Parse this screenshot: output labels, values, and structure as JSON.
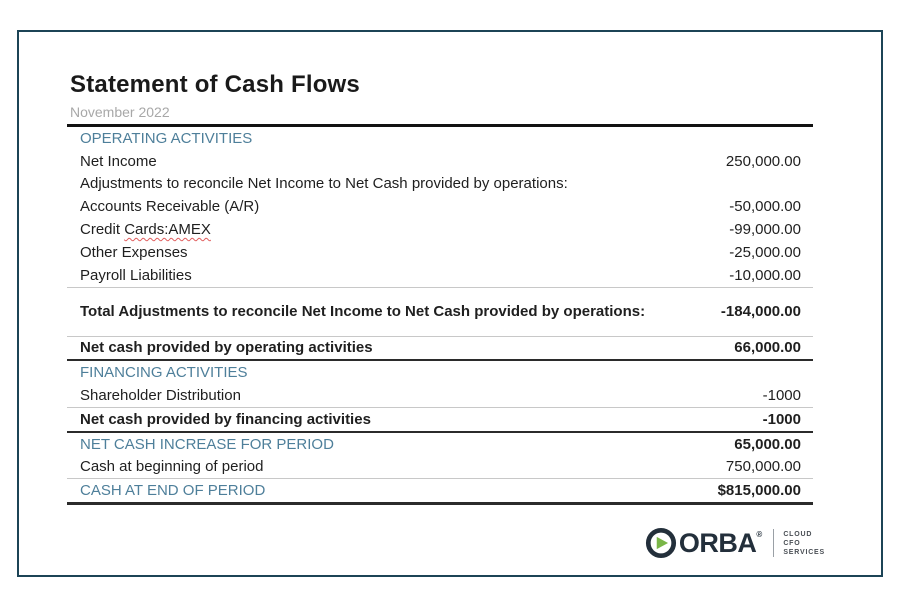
{
  "header": {
    "title": "Statement of Cash Flows",
    "subtitle": "November 2022"
  },
  "colors": {
    "frame_border": "#1c4456",
    "section_heading": "#4e7f9a",
    "body_text": "#1f1f1f",
    "subtitle_gray": "#a8a8a8",
    "thin_line": "#c8c8c8",
    "dark_line": "#2b2b2b",
    "spellcheck_red": "#e05c5c",
    "logo_green": "#7ab648",
    "logo_navy": "#232f3b"
  },
  "table": {
    "rows": [
      {
        "style": "section",
        "label": "OPERATING ACTIVITIES",
        "value": "",
        "border": "none"
      },
      {
        "style": "normal",
        "label": "Net Income",
        "value": "250,000.00",
        "border": "none"
      },
      {
        "style": "normal",
        "label": "Adjustments to reconcile Net Income to Net Cash provided by operations:",
        "value": "",
        "border": "none"
      },
      {
        "style": "normal",
        "label": "Accounts Receivable (A/R)",
        "value": "-50,000.00",
        "border": "none"
      },
      {
        "style": "normal",
        "label_parts": [
          {
            "text": "Credit "
          },
          {
            "text": "Cards:AMEX",
            "underline": "wavy-red"
          }
        ],
        "value": "-99,000.00",
        "border": "none"
      },
      {
        "style": "normal",
        "label": "Other Expenses",
        "value": "-25,000.00",
        "border": "none"
      },
      {
        "style": "normal",
        "label": "Payroll Liabilities",
        "value": "-10,000.00",
        "border": "thin"
      },
      {
        "style": "bold",
        "label": "Total Adjustments to reconcile Net Income to Net Cash provided by operations:",
        "value": "-184,000.00",
        "value_bold": true,
        "border": "thin",
        "tall": true
      },
      {
        "style": "bold",
        "label": "Net cash provided by operating activities",
        "value": "66,000.00",
        "value_bold": true,
        "border": "dark"
      },
      {
        "style": "section",
        "label": "FINANCING ACTIVITIES",
        "value": "",
        "border": "none"
      },
      {
        "style": "normal",
        "label": "Shareholder Distribution",
        "value": "-1000",
        "border": "thin"
      },
      {
        "style": "bold",
        "label": "Net cash provided by financing activities",
        "value": "-1000",
        "value_bold": true,
        "border": "dark"
      },
      {
        "style": "section",
        "label": "NET CASH INCREASE FOR PERIOD",
        "value": "65,000.00",
        "value_bold": true,
        "border": "none"
      },
      {
        "style": "normal",
        "label": "Cash at beginning of period",
        "value": "750,000.00",
        "border": "thin"
      },
      {
        "style": "section",
        "label": "CASH AT END OF PERIOD",
        "value": "$815,000.00",
        "value_bold": true,
        "border": "thick"
      }
    ]
  },
  "footer": {
    "brand": "ORBA",
    "reg": "®",
    "tagline": "CLOUD\nCFO\nSERVICES"
  }
}
